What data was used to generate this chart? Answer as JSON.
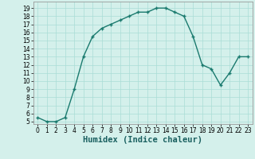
{
  "x": [
    0,
    1,
    2,
    3,
    4,
    5,
    6,
    7,
    8,
    9,
    10,
    11,
    12,
    13,
    14,
    15,
    16,
    17,
    18,
    19,
    20,
    21,
    22,
    23
  ],
  "y": [
    5.5,
    5.0,
    5.0,
    5.5,
    9.0,
    13.0,
    15.5,
    16.5,
    17.0,
    17.5,
    18.0,
    18.5,
    18.5,
    19.0,
    19.0,
    18.5,
    18.0,
    15.5,
    12.0,
    11.5,
    9.5,
    11.0,
    13.0,
    13.0
  ],
  "xlabel": "Humidex (Indice chaleur)",
  "line_color": "#1a7a6e",
  "marker": "+",
  "bg_color": "#d4f0eb",
  "grid_color": "#aaddd6",
  "ylim_min": 4.7,
  "ylim_max": 19.8,
  "xlim_min": -0.5,
  "xlim_max": 23.5,
  "yticks": [
    5,
    6,
    7,
    8,
    9,
    10,
    11,
    12,
    13,
    14,
    15,
    16,
    17,
    18,
    19
  ],
  "xticks": [
    0,
    1,
    2,
    3,
    4,
    5,
    6,
    7,
    8,
    9,
    10,
    11,
    12,
    13,
    14,
    15,
    16,
    17,
    18,
    19,
    20,
    21,
    22,
    23
  ],
  "tick_fontsize": 5.5,
  "xlabel_fontsize": 7.5,
  "line_width": 1.0,
  "marker_size": 3.5
}
